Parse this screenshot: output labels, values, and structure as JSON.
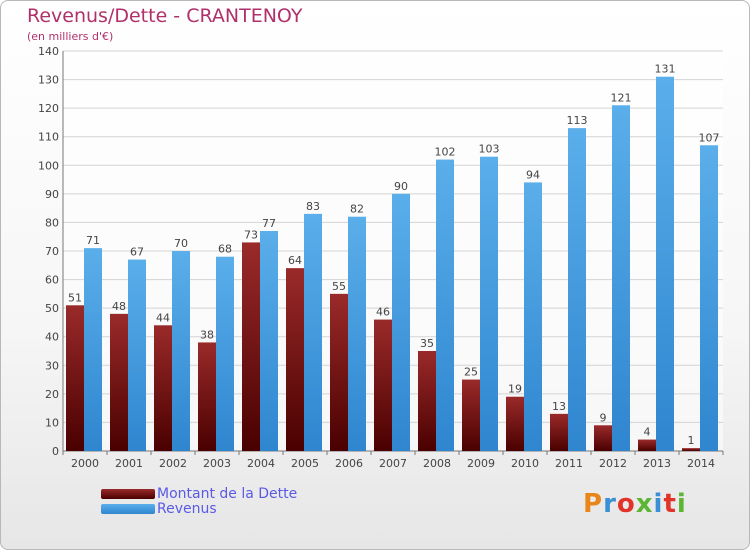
{
  "header": {
    "title": "Revenus/Dette - CRANTENOY",
    "subtitle": "(en milliers d'€)"
  },
  "chart_data": {
    "type": "bar",
    "title": "Revenus/Dette - CRANTENOY",
    "subtitle": "(en milliers d'€)",
    "xlabel": "",
    "ylabel": "",
    "ylim": [
      0,
      140
    ],
    "ytick_step": 10,
    "grid": true,
    "legend_position": "bottom-left",
    "categories": [
      "2000",
      "2001",
      "2002",
      "2003",
      "2004",
      "2005",
      "2006",
      "2007",
      "2008",
      "2009",
      "2010",
      "2011",
      "2012",
      "2013",
      "2014"
    ],
    "series": [
      {
        "name": "Montant de la Dette",
        "color": "#7a1414",
        "values": [
          51,
          48,
          44,
          38,
          73,
          64,
          55,
          46,
          35,
          25,
          19,
          13,
          9,
          4,
          1
        ]
      },
      {
        "name": "Revenus",
        "color": "#3f9ae0",
        "values": [
          71,
          67,
          70,
          68,
          77,
          83,
          82,
          90,
          102,
          103,
          94,
          113,
          121,
          131,
          107
        ]
      }
    ]
  },
  "logo": {
    "text": "Proxiti"
  }
}
